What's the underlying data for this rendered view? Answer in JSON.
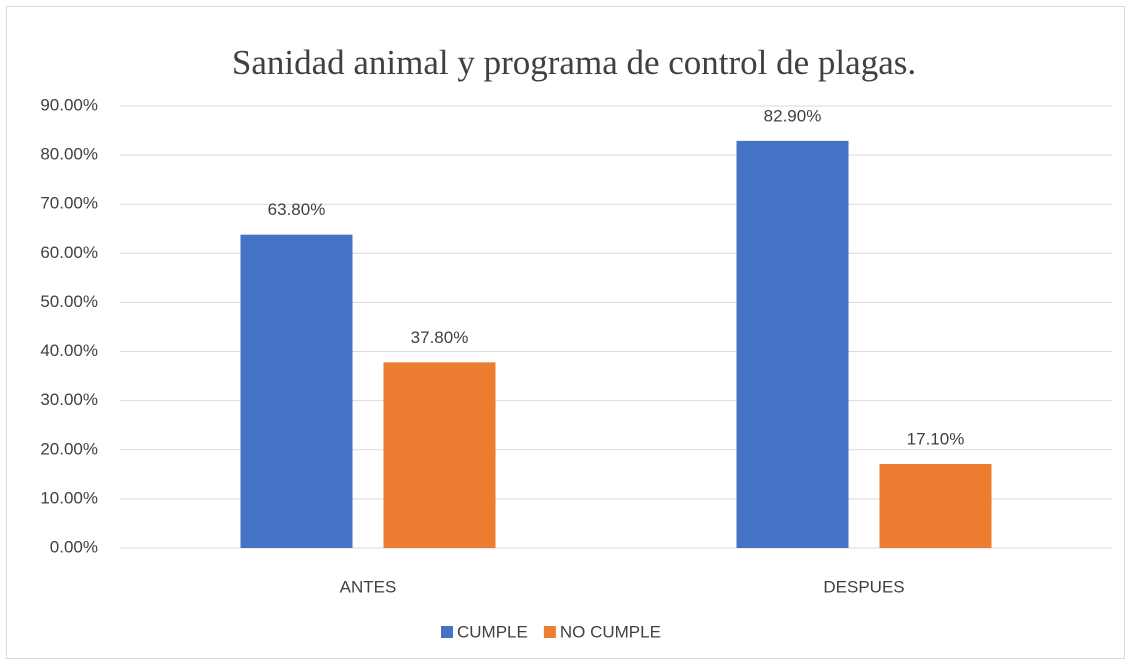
{
  "chart_data": {
    "type": "bar",
    "title": "Sanidad animal y programa de control de plagas.",
    "categories": [
      "ANTES",
      "DESPUES"
    ],
    "series": [
      {
        "name": "CUMPLE",
        "color": "#4472c4",
        "values": [
          63.8,
          82.9
        ],
        "value_labels": [
          "63.80%",
          "82.90%"
        ]
      },
      {
        "name": "NO CUMPLE",
        "color": "#ed7d31",
        "values": [
          37.8,
          17.1
        ],
        "value_labels": [
          "37.80%",
          "17.10%"
        ]
      }
    ],
    "ylim": [
      0,
      90
    ],
    "yticks": [
      {
        "value": 0,
        "label": "0.00%"
      },
      {
        "value": 10,
        "label": "10.00%"
      },
      {
        "value": 20,
        "label": "20.00%"
      },
      {
        "value": 30,
        "label": "30.00%"
      },
      {
        "value": 40,
        "label": "40.00%"
      },
      {
        "value": 50,
        "label": "50.00%"
      },
      {
        "value": 60,
        "label": "60.00%"
      },
      {
        "value": 70,
        "label": "70.00%"
      },
      {
        "value": 80,
        "label": "80.00%"
      },
      {
        "value": 90,
        "label": "90.00%"
      }
    ],
    "grid": true,
    "legend": "bottom"
  }
}
